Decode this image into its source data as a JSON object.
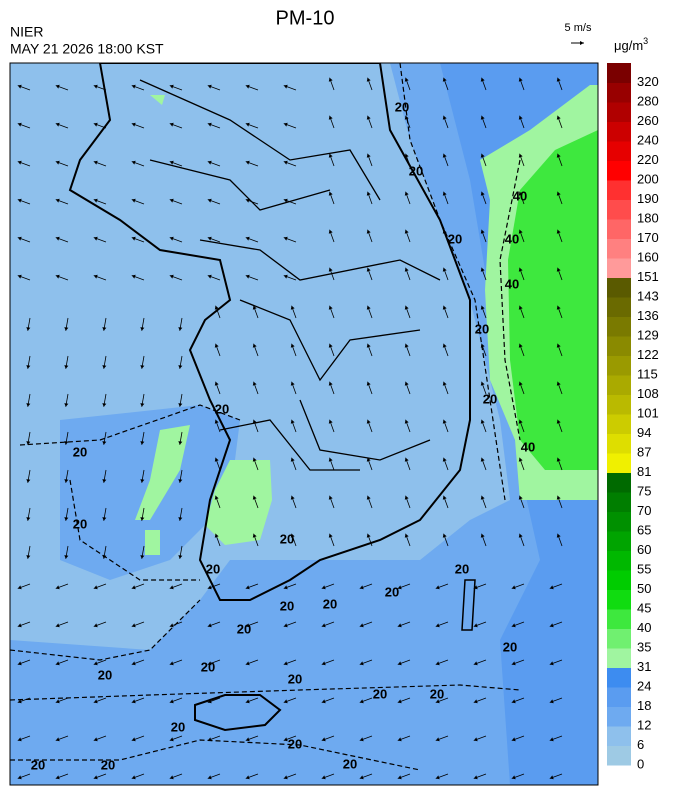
{
  "header": {
    "title": "PM-10",
    "agency": "NIER",
    "datetime": "MAY 21 2026 18:00 KST",
    "wind_scale": "5 m/s"
  },
  "colorbar": {
    "unit": "μg/m",
    "unit_exponent": "3",
    "levels": [
      {
        "value": 0,
        "color": "#9ecae4"
      },
      {
        "value": 6,
        "color": "#8ec0ec"
      },
      {
        "value": 12,
        "color": "#6eaaf0"
      },
      {
        "value": 18,
        "color": "#5a9cf0"
      },
      {
        "value": 24,
        "color": "#3d8cf0"
      },
      {
        "value": 31,
        "color": "#a0f5a0"
      },
      {
        "value": 35,
        "color": "#70f070"
      },
      {
        "value": 40,
        "color": "#3ee83e"
      },
      {
        "value": 45,
        "color": "#10dc10"
      },
      {
        "value": 50,
        "color": "#00cc00"
      },
      {
        "value": 55,
        "color": "#00b800"
      },
      {
        "value": 60,
        "color": "#00a400"
      },
      {
        "value": 65,
        "color": "#009000"
      },
      {
        "value": 70,
        "color": "#007e00"
      },
      {
        "value": 75,
        "color": "#006a00"
      },
      {
        "value": 81,
        "color": "#f0f000"
      },
      {
        "value": 87,
        "color": "#dede00"
      },
      {
        "value": 94,
        "color": "#cccc00"
      },
      {
        "value": 101,
        "color": "#baba00"
      },
      {
        "value": 108,
        "color": "#aaaa00"
      },
      {
        "value": 115,
        "color": "#9a9a00"
      },
      {
        "value": 122,
        "color": "#8a8a00"
      },
      {
        "value": 129,
        "color": "#7a7a00"
      },
      {
        "value": 136,
        "color": "#6a6a00"
      },
      {
        "value": 143,
        "color": "#5a5a00"
      },
      {
        "value": 151,
        "color": "#ff9a9a"
      },
      {
        "value": 160,
        "color": "#ff8080"
      },
      {
        "value": 170,
        "color": "#ff6666"
      },
      {
        "value": 180,
        "color": "#ff4c4c"
      },
      {
        "value": 190,
        "color": "#ff3030"
      },
      {
        "value": 200,
        "color": "#ff0000"
      },
      {
        "value": 220,
        "color": "#e60000"
      },
      {
        "value": 240,
        "color": "#cc0000"
      },
      {
        "value": 260,
        "color": "#b00000"
      },
      {
        "value": 280,
        "color": "#980000"
      },
      {
        "value": 320,
        "color": "#7a0000"
      }
    ]
  },
  "contour_labels": [
    "20",
    "20",
    "20",
    "40",
    "40",
    "40",
    "20",
    "20",
    "40",
    "20",
    "20",
    "20",
    "20",
    "20",
    "20",
    "20",
    "20",
    "20",
    "20",
    "20",
    "20",
    "20",
    "20",
    "20",
    "20",
    "20",
    "20",
    "20",
    "20",
    "20"
  ]
}
